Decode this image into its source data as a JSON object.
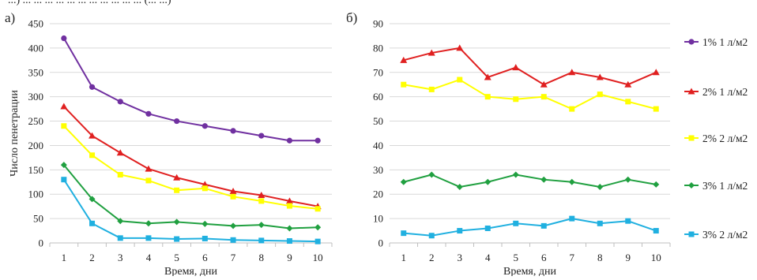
{
  "top_cut_text": "...) ... ... ... ... ... ... ... ... ... ... ... (... ...)",
  "legend": {
    "placement": "right",
    "entries": [
      {
        "label": "1% 1 л/м2",
        "color": "#7030a0",
        "marker": "circle"
      },
      {
        "label": "2% 1 л/м2",
        "color": "#e02020",
        "marker": "triangle"
      },
      {
        "label": "2% 2 л/м2",
        "color": "#ffff00",
        "marker": "square"
      },
      {
        "label": "3% 1 л/м2",
        "color": "#20a040",
        "marker": "diamond"
      },
      {
        "label": "3% 2 л/м2",
        "color": "#20b0e0",
        "marker": "square"
      }
    ]
  },
  "chart_data": [
    {
      "panel_label": "а)",
      "type": "line",
      "xlabel": "Время, дни",
      "ylabel": "Число пенетрации",
      "x": [
        1,
        2,
        3,
        4,
        5,
        6,
        7,
        8,
        9,
        10
      ],
      "ylim": [
        0,
        450
      ],
      "ystep": 50,
      "grid": "horizontal",
      "series": [
        {
          "name": "1% 1 л/м2",
          "color": "#7030a0",
          "marker": "circle",
          "values": [
            420,
            320,
            290,
            265,
            250,
            240,
            230,
            220,
            210,
            210
          ]
        },
        {
          "name": "2% 1 л/м2",
          "color": "#e02020",
          "marker": "triangle",
          "values": [
            280,
            220,
            185,
            152,
            134,
            120,
            106,
            98,
            86,
            75
          ]
        },
        {
          "name": "2% 2 л/м2",
          "color": "#ffff00",
          "marker": "square",
          "values": [
            240,
            180,
            140,
            128,
            108,
            112,
            95,
            86,
            76,
            70
          ]
        },
        {
          "name": "3% 1 л/м2",
          "color": "#20a040",
          "marker": "diamond",
          "values": [
            160,
            90,
            45,
            40,
            43,
            39,
            35,
            37,
            30,
            32
          ]
        },
        {
          "name": "3% 2 л/м2",
          "color": "#20b0e0",
          "marker": "square",
          "values": [
            130,
            40,
            10,
            10,
            8,
            9,
            6,
            5,
            4,
            3
          ]
        }
      ]
    },
    {
      "panel_label": "б)",
      "type": "line",
      "xlabel": "Время, дни",
      "ylabel": "",
      "x": [
        1,
        2,
        3,
        4,
        5,
        6,
        7,
        8,
        9,
        10
      ],
      "ylim": [
        0,
        90
      ],
      "ystep": 10,
      "grid": "horizontal",
      "series": [
        {
          "name": "2% 1 л/м2",
          "color": "#e02020",
          "marker": "triangle",
          "values": [
            75,
            78,
            80,
            68,
            72,
            65,
            70,
            68,
            65,
            70
          ]
        },
        {
          "name": "2% 2 л/м2",
          "color": "#ffff00",
          "marker": "square",
          "values": [
            65,
            63,
            67,
            60,
            59,
            60,
            55,
            61,
            58,
            55
          ]
        },
        {
          "name": "3% 1 л/м2",
          "color": "#20a040",
          "marker": "diamond",
          "values": [
            25,
            28,
            23,
            25,
            28,
            26,
            25,
            23,
            26,
            24
          ]
        },
        {
          "name": "3% 2 л/м2",
          "color": "#20b0e0",
          "marker": "square",
          "values": [
            4,
            3,
            5,
            6,
            8,
            7,
            10,
            8,
            9,
            5
          ]
        }
      ]
    }
  ]
}
